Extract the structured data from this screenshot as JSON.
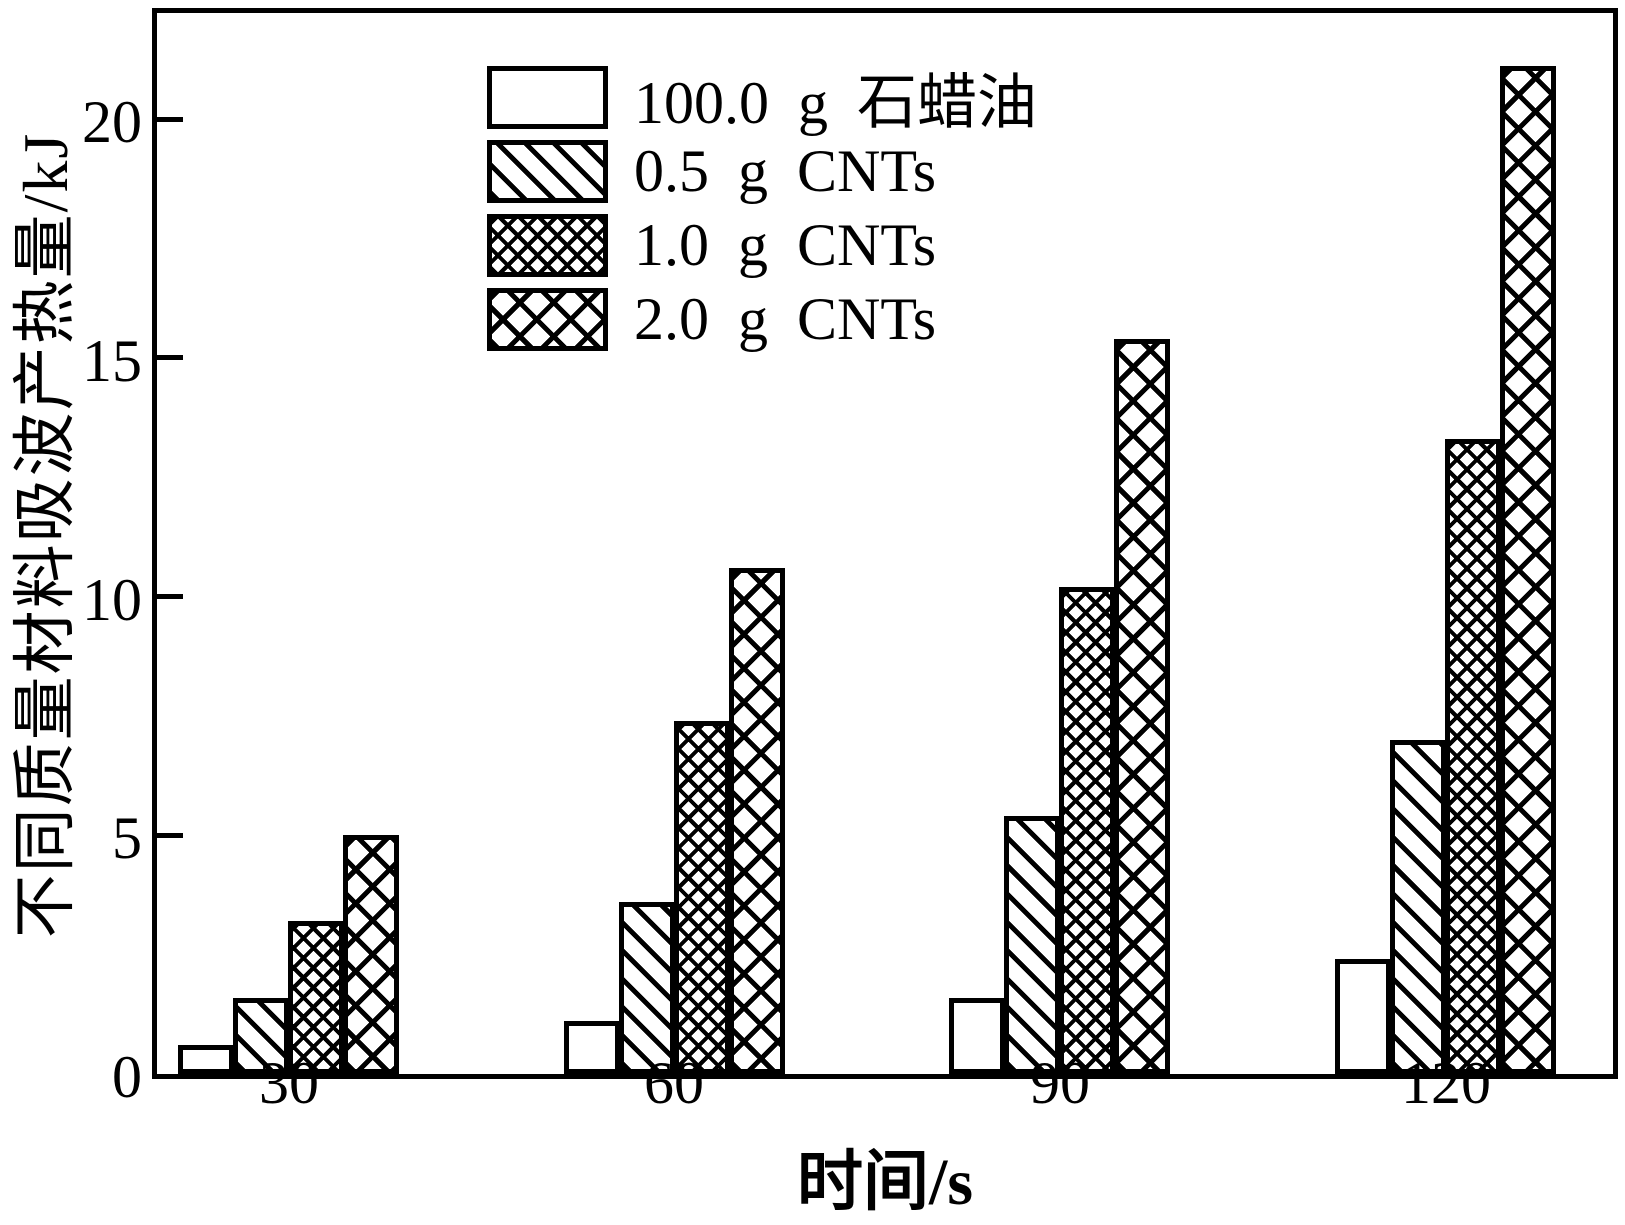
{
  "chart_data": {
    "type": "bar",
    "title": "",
    "categories": [
      "30",
      "60",
      "90",
      "120"
    ],
    "series": [
      {
        "name": "100.0 g 石蜡油",
        "pattern": "solid-white",
        "values": [
          0.6,
          1.1,
          1.6,
          2.4
        ]
      },
      {
        "name": "0.5 g CNTs",
        "pattern": "diagonal-hatch",
        "values": [
          1.6,
          3.6,
          5.4,
          7.0
        ]
      },
      {
        "name": "1.0 g CNTs",
        "pattern": "dense-crosshatch",
        "values": [
          3.2,
          7.4,
          10.2,
          13.3
        ]
      },
      {
        "name": "2.0 g CNTs",
        "pattern": "wide-crosshatch",
        "values": [
          5.0,
          10.6,
          15.4,
          21.1
        ]
      }
    ],
    "xlabel": "时间/s",
    "ylabel": "不同质量材料吸波产热量/kJ",
    "ylim": [
      0,
      22.4
    ],
    "yticks": [
      0,
      5,
      10,
      15,
      20
    ],
    "grid": false,
    "legend_position": "upper-left-inside",
    "bar_fill": "#ffffff",
    "line_color": "#000000",
    "background": "#ffffff"
  }
}
